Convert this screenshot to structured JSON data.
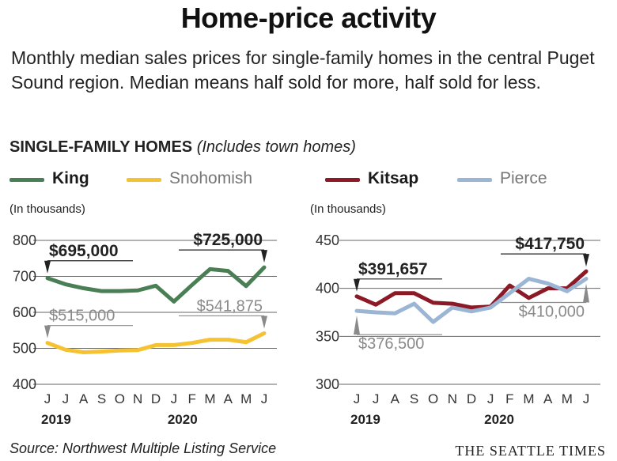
{
  "title": "Home-price activity",
  "subtitle": "Monthly median sales prices for single-family homes in the central Puget Sound region. Median means half sold for more, half sold for less.",
  "section_title": "SINGLE-FAMILY HOMES",
  "section_note": "(Includes town homes)",
  "source": "Source: Northwest Multiple Listing Service",
  "brand": "THE SEATTLE TIMES",
  "colors": {
    "king": "#4a7f55",
    "snohomish": "#f5c232",
    "kitsap": "#8b1a26",
    "pierce": "#9ab6d4",
    "axis_text": "#333333",
    "grid": "#666666"
  },
  "chart_data": [
    {
      "type": "line",
      "unit_label": "(In thousands)",
      "x": [
        "J",
        "J",
        "A",
        "S",
        "O",
        "N",
        "D",
        "J",
        "F",
        "M",
        "A",
        "M",
        "J"
      ],
      "year_labels": [
        "2019",
        "2020"
      ],
      "yticks": [
        400,
        500,
        600,
        700,
        800
      ],
      "ylim": [
        400,
        800
      ],
      "series": [
        {
          "name": "King",
          "color": "#4a7f55",
          "legend_bold": true,
          "values": [
            695,
            678,
            667,
            659,
            659,
            661,
            674,
            630,
            676,
            720,
            715,
            673,
            725
          ],
          "callouts": [
            {
              "index": 0,
              "text": "$695,000",
              "bold": true
            },
            {
              "index": 12,
              "text": "$725,000",
              "bold": true
            }
          ]
        },
        {
          "name": "Snohomish",
          "color": "#f5c232",
          "legend_bold": false,
          "values": [
            515,
            496,
            489,
            491,
            494,
            495,
            509,
            509,
            515,
            524,
            524,
            517,
            541.875
          ],
          "callouts": [
            {
              "index": 0,
              "text": "$515,000",
              "bold": false
            },
            {
              "index": 12,
              "text": "$541,875",
              "bold": false
            }
          ]
        }
      ]
    },
    {
      "type": "line",
      "unit_label": "(In thousands)",
      "x": [
        "J",
        "J",
        "A",
        "S",
        "O",
        "N",
        "D",
        "J",
        "F",
        "M",
        "A",
        "M",
        "J"
      ],
      "year_labels": [
        "2019",
        "2020"
      ],
      "yticks": [
        300,
        350,
        400,
        450
      ],
      "ylim": [
        300,
        450
      ],
      "series": [
        {
          "name": "Kitsap",
          "color": "#8b1a26",
          "legend_bold": true,
          "values": [
            391.657,
            383,
            395,
            395,
            385,
            384,
            380,
            381,
            403,
            390,
            400,
            400,
            417.75
          ],
          "callouts": [
            {
              "index": 0,
              "text": "$391,657",
              "bold": true
            },
            {
              "index": 12,
              "text": "$417,750",
              "bold": true
            }
          ]
        },
        {
          "name": "Pierce",
          "color": "#9ab6d4",
          "legend_bold": false,
          "values": [
            376.5,
            375,
            374,
            384,
            365,
            380,
            376,
            380,
            395,
            410,
            405,
            397,
            410
          ],
          "callouts": [
            {
              "index": 0,
              "text": "$376,500",
              "bold": false
            },
            {
              "index": 12,
              "text": "$410,000",
              "bold": false
            }
          ]
        }
      ]
    }
  ]
}
